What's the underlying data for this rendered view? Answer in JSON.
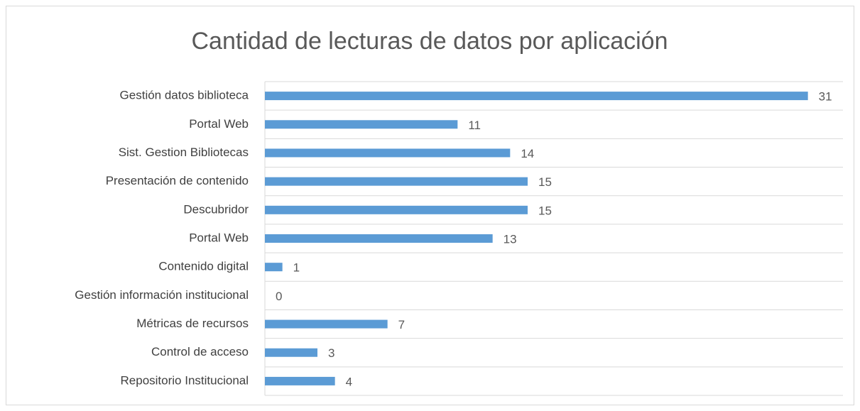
{
  "chart_data": {
    "type": "hbar",
    "title": "Cantidad de lecturas de datos por aplicación",
    "categories": [
      "Gestión datos biblioteca",
      "Portal Web",
      "Sist. Gestion Bibliotecas",
      "Presentación de contenido",
      "Descubridor",
      "Portal Web",
      "Contenido digital",
      "Gestión información institucional",
      "Métricas de recursos",
      "Control de acceso",
      "Repositorio Institucional"
    ],
    "values": [
      31,
      11,
      14,
      15,
      15,
      13,
      1,
      0,
      7,
      3,
      4
    ],
    "color": "#5b9bd5",
    "xlim": [
      0,
      33
    ],
    "grid": true
  }
}
